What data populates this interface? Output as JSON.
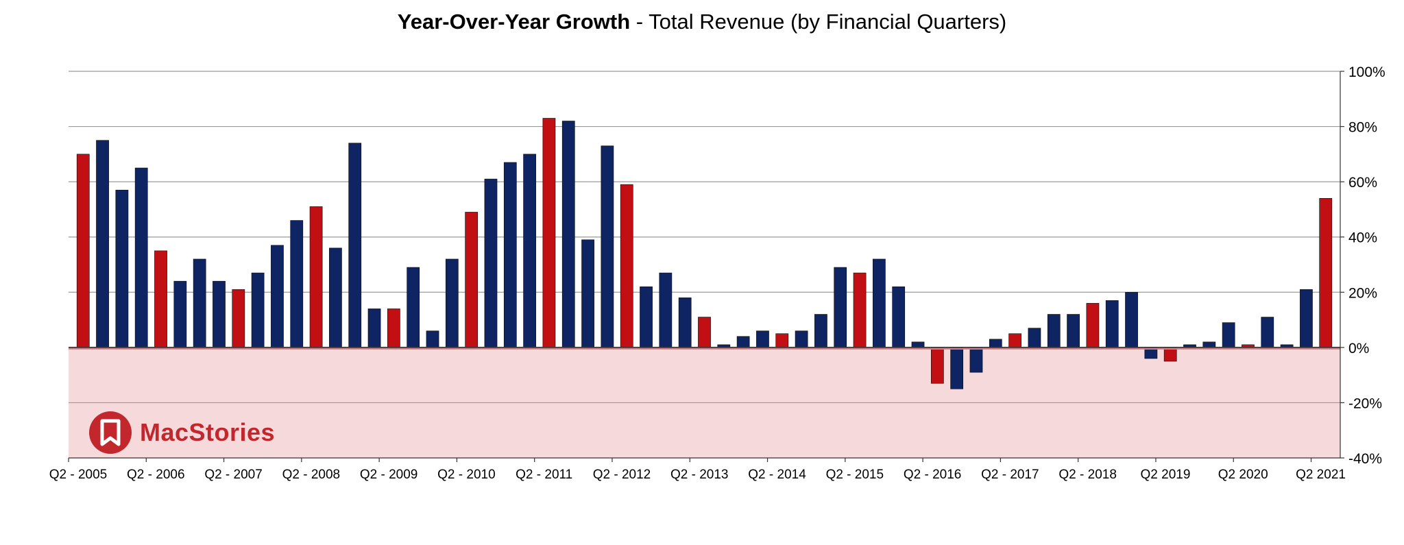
{
  "title": {
    "bold": "Year-Over-Year Growth",
    "rest": " - Total Revenue (by Financial Quarters)"
  },
  "watermark": {
    "text": "MacStories",
    "color": "#c1272d",
    "icon": "bookmark-icon"
  },
  "colors": {
    "highlight": "#c20f14",
    "normal": "#0f2462",
    "negative_band": "#f6d9db",
    "grid": "#9a9a9a"
  },
  "chart_data": {
    "type": "bar",
    "ylim": [
      -40,
      100
    ],
    "yticks": [
      "100%",
      "80%",
      "60%",
      "40%",
      "20%",
      "0%",
      "-20%",
      "-40%"
    ],
    "ytick_values": [
      100,
      80,
      60,
      40,
      20,
      0,
      -20,
      -40
    ],
    "negative_region_shaded": true,
    "grid": true,
    "x_tick_labels": [
      {
        "index": 0,
        "label": "Q2 - 2005"
      },
      {
        "index": 4,
        "label": "Q2 - 2006"
      },
      {
        "index": 8,
        "label": "Q2 - 2007"
      },
      {
        "index": 12,
        "label": "Q2 - 2008"
      },
      {
        "index": 16,
        "label": "Q2 - 2009"
      },
      {
        "index": 20,
        "label": "Q2 - 2010"
      },
      {
        "index": 24,
        "label": "Q2 - 2011"
      },
      {
        "index": 28,
        "label": "Q2 - 2012"
      },
      {
        "index": 32,
        "label": "Q2 - 2013"
      },
      {
        "index": 36,
        "label": "Q2 - 2014"
      },
      {
        "index": 40,
        "label": "Q2 - 2015"
      },
      {
        "index": 44,
        "label": "Q2 - 2016"
      },
      {
        "index": 48,
        "label": "Q2 - 2017"
      },
      {
        "index": 52,
        "label": "Q2 - 2018"
      },
      {
        "index": 56,
        "label": "Q2 2019"
      },
      {
        "index": 60,
        "label": "Q2 2020"
      },
      {
        "index": 64,
        "label": "Q2 2021"
      }
    ],
    "values": [
      70,
      75,
      57,
      65,
      35,
      24,
      32,
      24,
      21,
      27,
      37,
      46,
      51,
      36,
      74,
      14,
      14,
      29,
      6,
      32,
      49,
      61,
      67,
      70,
      83,
      82,
      39,
      73,
      59,
      22,
      27,
      18,
      11,
      1,
      4,
      6,
      5,
      6,
      12,
      29,
      27,
      32,
      22,
      2,
      -13,
      -15,
      -9,
      3,
      5,
      7,
      12,
      12,
      16,
      17,
      20,
      -4,
      -5,
      1,
      2,
      9,
      1,
      11,
      1,
      21,
      54
    ],
    "highlighted": [
      true,
      false,
      false,
      false,
      true,
      false,
      false,
      false,
      true,
      false,
      false,
      false,
      true,
      false,
      false,
      false,
      true,
      false,
      false,
      false,
      true,
      false,
      false,
      false,
      true,
      false,
      false,
      false,
      true,
      false,
      false,
      false,
      true,
      false,
      false,
      false,
      true,
      false,
      false,
      false,
      true,
      false,
      false,
      false,
      true,
      false,
      false,
      false,
      true,
      false,
      false,
      false,
      true,
      false,
      false,
      false,
      true,
      false,
      false,
      false,
      true,
      false,
      false,
      false,
      true
    ]
  }
}
